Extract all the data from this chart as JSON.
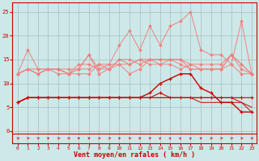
{
  "x": [
    0,
    1,
    2,
    3,
    4,
    5,
    6,
    7,
    8,
    9,
    10,
    11,
    12,
    13,
    14,
    15,
    16,
    17,
    18,
    19,
    20,
    21,
    22,
    23
  ],
  "line1": [
    12,
    17,
    13,
    13,
    13,
    13,
    13,
    16,
    13,
    13,
    15,
    14,
    15,
    15,
    15,
    15,
    15,
    14,
    14,
    14,
    14,
    16,
    14,
    12
  ],
  "line2": [
    12,
    13,
    13,
    13,
    13,
    12,
    14,
    14,
    13,
    14,
    14,
    14,
    15,
    14,
    14,
    15,
    15,
    13,
    13,
    13,
    13,
    14,
    12,
    12
  ],
  "line3": [
    12,
    13,
    12,
    13,
    13,
    12,
    13,
    16,
    12,
    13,
    14,
    12,
    13,
    15,
    14,
    14,
    13,
    14,
    13,
    13,
    13,
    16,
    13,
    12
  ],
  "line4": [
    12,
    13,
    12,
    13,
    13,
    12,
    13,
    13,
    14,
    13,
    15,
    15,
    14,
    15,
    15,
    15,
    14,
    13,
    13,
    13,
    13,
    16,
    14,
    12
  ],
  "line5": [
    12,
    13,
    12,
    13,
    12,
    12,
    12,
    12,
    14,
    14,
    18,
    21,
    17,
    22,
    18,
    22,
    23,
    25,
    17,
    16,
    16,
    14,
    23,
    12
  ],
  "line6": [
    6,
    7,
    7,
    7,
    7,
    7,
    7,
    7,
    7,
    7,
    7,
    7,
    7,
    7,
    8,
    7,
    7,
    7,
    7,
    7,
    7,
    7,
    7,
    7
  ],
  "line7": [
    6,
    7,
    7,
    7,
    7,
    7,
    7,
    7,
    7,
    7,
    7,
    7,
    7,
    8,
    10,
    11,
    12,
    12,
    9,
    8,
    6,
    6,
    4,
    4
  ],
  "line8": [
    6,
    7,
    7,
    7,
    7,
    7,
    7,
    7,
    7,
    7,
    7,
    7,
    7,
    7,
    7,
    7,
    7,
    7,
    6,
    6,
    6,
    6,
    6,
    5
  ],
  "line9": [
    6,
    7,
    7,
    7,
    7,
    7,
    7,
    7,
    7,
    7,
    7,
    7,
    7,
    7,
    7,
    7,
    7,
    7,
    7,
    7,
    7,
    7,
    6,
    4
  ],
  "bg_color": "#cde8e8",
  "grid_color": "#aabcbc",
  "light_red": "#f08080",
  "dark_red": "#cc0000",
  "med_red": "#dd3333",
  "xlabel": "Vent moyen/en rafales ( km/h )",
  "yticks": [
    0,
    5,
    10,
    15,
    20,
    25
  ],
  "ylim": [
    -2.5,
    27
  ],
  "xlim": [
    -0.5,
    23.5
  ]
}
